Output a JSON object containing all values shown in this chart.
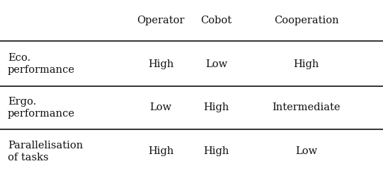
{
  "col_headers": [
    "Operator",
    "Cobot",
    "Cooperation"
  ],
  "rows": [
    {
      "label": "Eco.\nperformance",
      "values": [
        "High",
        "Low",
        "High"
      ]
    },
    {
      "label": "Ergo.\nperformance",
      "values": [
        "Low",
        "High",
        "Intermediate"
      ]
    },
    {
      "label": "Parallelisation\nof tasks",
      "values": [
        "High",
        "High",
        "Low"
      ]
    }
  ],
  "bg_color": "#ffffff",
  "text_color": "#111111",
  "line_color": "#111111",
  "font_size": 10.5,
  "header_font_size": 10.5
}
